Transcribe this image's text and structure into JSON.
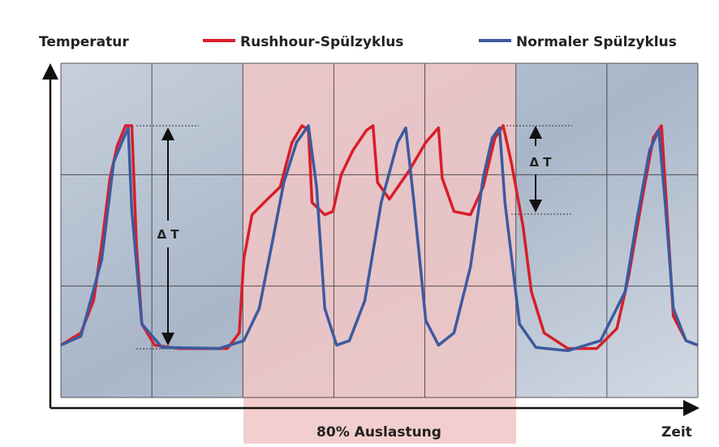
{
  "chart_data": {
    "type": "line",
    "y_label": "Temperatur",
    "x_label": "Zeit",
    "annotations": {
      "load_region": "80% Auslastung",
      "delta_left": "Δ T",
      "delta_right": "Δ T"
    },
    "xlim": [
      0,
      70
    ],
    "ylim": [
      0,
      30
    ],
    "series": [
      {
        "name": "Rushhour-Spülzyklus",
        "color": "#d81e28",
        "x": [
          0,
          2.2,
          3.6,
          4.5,
          5.4,
          6.2,
          7.1,
          7.8,
          8.3,
          8.9,
          10.3,
          12.9,
          18.3,
          19.6,
          20.1,
          21.0,
          22.7,
          24.1,
          25.4,
          26.5,
          27.2,
          27.6,
          29.0,
          29.9,
          30.8,
          32.1,
          33.6,
          34.3,
          34.8,
          36.1,
          38.3,
          40.1,
          41.5,
          41.9,
          43.2,
          45.0,
          46.4,
          47.7,
          48.6,
          49.5,
          50.8,
          51.7,
          53.1,
          55.7,
          58.9,
          61.1,
          62.4,
          63.8,
          65.1,
          66.0,
          66.6,
          67.3,
          68.7,
          70
        ],
        "values": [
          4.7,
          5.8,
          8.7,
          13.8,
          19.7,
          22.6,
          24.4,
          24.4,
          13.8,
          6.6,
          4.7,
          4.4,
          4.4,
          5.8,
          12.4,
          16.4,
          17.8,
          18.9,
          22.9,
          24.4,
          24.0,
          17.5,
          16.4,
          16.7,
          20.0,
          22.2,
          24.0,
          24.4,
          19.3,
          17.8,
          20.4,
          22.9,
          24.2,
          19.7,
          16.7,
          16.4,
          18.9,
          23.3,
          24.4,
          21.1,
          15.3,
          9.5,
          5.8,
          4.4,
          4.4,
          6.2,
          10.9,
          17.5,
          23.3,
          24.4,
          16.7,
          7.3,
          5.1,
          4.7
        ]
      },
      {
        "name": "Normaler Spülzyklus",
        "color": "#3c5aa0",
        "x": [
          0,
          2.2,
          4.5,
          5.8,
          6.9,
          7.4,
          7.8,
          8.9,
          11.1,
          17.4,
          20.1,
          21.8,
          23.2,
          24.5,
          25.9,
          27.2,
          28.1,
          29.0,
          30.3,
          31.7,
          33.4,
          35.2,
          37.0,
          37.9,
          38.8,
          40.1,
          41.5,
          43.2,
          45.0,
          46.4,
          47.4,
          48.2,
          48.8,
          50.4,
          52.2,
          55.7,
          59.3,
          62.0,
          63.3,
          64.7,
          65.7,
          66.4,
          67.3,
          68.7,
          70
        ],
        "values": [
          4.7,
          5.5,
          12.4,
          21.1,
          23.3,
          24.2,
          16.7,
          6.6,
          4.5,
          4.4,
          5.1,
          8.0,
          13.8,
          19.3,
          22.9,
          24.4,
          18.9,
          8.0,
          4.7,
          5.1,
          8.7,
          17.5,
          22.9,
          24.2,
          17.5,
          6.9,
          4.7,
          5.8,
          11.7,
          19.7,
          23.3,
          24.2,
          17.5,
          6.6,
          4.5,
          4.2,
          5.1,
          9.5,
          16.0,
          22.2,
          24.0,
          17.5,
          8.0,
          5.1,
          4.7
        ]
      }
    ],
    "grid": true
  }
}
